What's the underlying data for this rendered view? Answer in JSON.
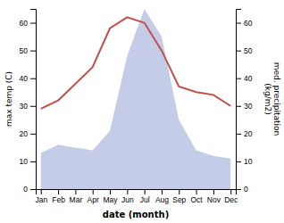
{
  "chart_data": {
    "type": "line",
    "xlabel": "date (month)",
    "ylabel": "max temp (C)",
    "y2label": "med. precipitation\n(kg/m2)",
    "categories": [
      "Jan",
      "Feb",
      "Mar",
      "Apr",
      "May",
      "Jun",
      "Jul",
      "Aug",
      "Sep",
      "Oct",
      "Nov",
      "Dec"
    ],
    "series": [
      {
        "type": "area",
        "color": "#c5cce8",
        "values": [
          13,
          16,
          15,
          14,
          21,
          48,
          65,
          55,
          25,
          14,
          12,
          11
        ]
      },
      {
        "type": "line",
        "color": "#c0504d",
        "axis": "y2",
        "values": [
          29,
          32,
          38,
          44,
          58,
          62,
          60,
          50,
          37,
          35,
          34,
          30
        ]
      }
    ],
    "ylim": [
      0,
      65
    ],
    "yticks": [
      0,
      10,
      20,
      30,
      40,
      50,
      60
    ],
    "y2lim": [
      0,
      65
    ],
    "y2ticks": [
      0,
      10,
      20,
      30,
      40,
      50,
      60
    ]
  }
}
